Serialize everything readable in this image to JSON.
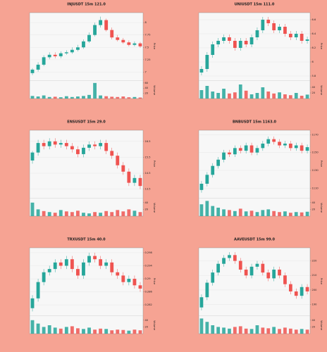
{
  "chart_data": [
    {
      "type": "candlestick",
      "title": "INJUSDT 15m 121.0",
      "ylabel": "Price",
      "y2label": "Volume",
      "up_color": "#26a69a",
      "down_color": "#ef5350",
      "grid": true,
      "open": [
        6.98,
        7.05,
        7.15,
        7.3,
        7.35,
        7.32,
        7.38,
        7.4,
        7.45,
        7.5,
        7.62,
        7.75,
        7.95,
        8.05,
        7.85,
        7.7,
        7.65,
        7.6,
        7.55,
        7.58
      ],
      "high": [
        7.08,
        7.2,
        7.34,
        7.4,
        7.4,
        7.42,
        7.44,
        7.5,
        7.55,
        7.66,
        7.8,
        8.0,
        8.12,
        8.08,
        7.9,
        7.75,
        7.69,
        7.64,
        7.62,
        7.61
      ],
      "low": [
        6.94,
        7.01,
        7.12,
        7.26,
        7.28,
        7.28,
        7.35,
        7.37,
        7.42,
        7.47,
        7.59,
        7.72,
        7.9,
        7.82,
        7.66,
        7.62,
        7.57,
        7.52,
        7.52,
        7.49
      ],
      "close": [
        7.05,
        7.15,
        7.3,
        7.35,
        7.32,
        7.38,
        7.4,
        7.45,
        7.5,
        7.62,
        7.75,
        7.95,
        8.05,
        7.85,
        7.7,
        7.65,
        7.6,
        7.55,
        7.58,
        7.52
      ],
      "volume": [
        10,
        8,
        12,
        6,
        7,
        5,
        9,
        6,
        8,
        10,
        14,
        60,
        12,
        9,
        7,
        6,
        8,
        5,
        6,
        4
      ],
      "ylim": [
        6.85,
        8.2
      ],
      "yticks": [
        7.0,
        7.25,
        7.5,
        7.75,
        8.0
      ],
      "y2lim": [
        0,
        65
      ],
      "y2ticks": [
        20,
        40,
        60
      ]
    },
    {
      "type": "candlestick",
      "title": "UNIUSDT 15m 111.0",
      "ylabel": "Price",
      "y2label": "Volume",
      "up_color": "#26a69a",
      "down_color": "#ef5350",
      "grid": true,
      "open": [
        5.85,
        5.9,
        6.1,
        6.25,
        6.3,
        6.35,
        6.3,
        6.2,
        6.3,
        6.25,
        6.35,
        6.45,
        6.6,
        6.55,
        6.45,
        6.5,
        6.4,
        6.35,
        6.4,
        6.3
      ],
      "high": [
        5.94,
        6.14,
        6.29,
        6.34,
        6.39,
        6.39,
        6.34,
        6.34,
        6.34,
        6.39,
        6.49,
        6.64,
        6.64,
        6.59,
        6.54,
        6.54,
        6.44,
        6.44,
        6.44,
        6.36
      ],
      "low": [
        5.81,
        5.86,
        6.06,
        6.21,
        6.26,
        6.26,
        6.16,
        6.16,
        6.21,
        6.21,
        6.31,
        6.41,
        6.51,
        6.41,
        6.41,
        6.36,
        6.31,
        6.31,
        6.26,
        6.26
      ],
      "close": [
        5.9,
        6.1,
        6.25,
        6.3,
        6.35,
        6.3,
        6.2,
        6.3,
        6.25,
        6.35,
        6.45,
        6.6,
        6.55,
        6.45,
        6.5,
        6.4,
        6.35,
        6.4,
        6.3,
        6.32
      ],
      "volume": [
        30,
        45,
        25,
        20,
        35,
        18,
        22,
        50,
        28,
        15,
        20,
        40,
        25,
        18,
        22,
        15,
        12,
        20,
        10,
        14
      ],
      "ylim": [
        5.75,
        6.7
      ],
      "yticks": [
        5.8,
        6.0,
        6.2,
        6.4,
        6.6
      ],
      "y2lim": [
        0,
        60
      ],
      "y2ticks": [
        20,
        40
      ]
    },
    {
      "type": "candlestick",
      "title": "ENSUSDT 15m 29.0",
      "ylabel": "Price",
      "y2label": "Volume",
      "up_color": "#26a69a",
      "down_color": "#ef5350",
      "grid": true,
      "open": [
        15.3,
        15.8,
        16.4,
        16.2,
        16.5,
        16.3,
        16.4,
        16.2,
        16.0,
        15.7,
        16.1,
        16.3,
        16.2,
        16.4,
        15.9,
        15.6,
        15.0,
        14.6,
        13.9,
        14.2
      ],
      "high": [
        15.9,
        16.6,
        16.6,
        16.7,
        16.7,
        16.6,
        16.6,
        16.4,
        16.2,
        16.3,
        16.5,
        16.5,
        16.6,
        16.6,
        16.1,
        15.8,
        15.2,
        14.8,
        14.4,
        14.4
      ],
      "low": [
        15.1,
        15.6,
        16.0,
        16.0,
        16.1,
        16.1,
        16.0,
        15.8,
        15.5,
        15.5,
        15.9,
        16.0,
        16.0,
        15.7,
        15.4,
        14.8,
        14.4,
        13.7,
        13.7,
        13.5
      ],
      "close": [
        15.8,
        16.4,
        16.2,
        16.5,
        16.3,
        16.4,
        16.2,
        16.0,
        15.7,
        16.1,
        16.3,
        16.2,
        16.4,
        15.9,
        15.6,
        15.0,
        14.6,
        13.9,
        14.2,
        13.7
      ],
      "volume": [
        40,
        20,
        15,
        12,
        10,
        18,
        14,
        12,
        16,
        10,
        8,
        12,
        10,
        15,
        12,
        18,
        14,
        20,
        16,
        12
      ],
      "ylim": [
        13.0,
        17.2
      ],
      "yticks": [
        13.5,
        14.5,
        15.5,
        16.5
      ],
      "y2lim": [
        0,
        50
      ],
      "y2ticks": [
        20,
        40
      ]
    },
    {
      "type": "candlestick",
      "title": "BNBUSDT 15m 1163.0",
      "ylabel": "Price",
      "y2label": "Volume",
      "up_color": "#26a69a",
      "down_color": "#ef5350",
      "grid": true,
      "open": [
        1108,
        1115,
        1125,
        1135,
        1142,
        1150,
        1148,
        1155,
        1152,
        1158,
        1150,
        1155,
        1160,
        1165,
        1162,
        1158,
        1160,
        1155,
        1158,
        1152
      ],
      "high": [
        1118,
        1128,
        1138,
        1145,
        1153,
        1153,
        1158,
        1158,
        1161,
        1161,
        1158,
        1163,
        1168,
        1168,
        1165,
        1163,
        1163,
        1161,
        1161,
        1159
      ],
      "low": [
        1105,
        1112,
        1122,
        1132,
        1139,
        1145,
        1145,
        1149,
        1149,
        1147,
        1147,
        1152,
        1157,
        1159,
        1155,
        1155,
        1152,
        1152,
        1149,
        1149
      ],
      "close": [
        1115,
        1125,
        1135,
        1142,
        1150,
        1148,
        1155,
        1152,
        1158,
        1150,
        1155,
        1160,
        1165,
        1162,
        1158,
        1160,
        1155,
        1158,
        1152,
        1156
      ],
      "volume": [
        35,
        45,
        30,
        25,
        20,
        18,
        15,
        22,
        14,
        16,
        12,
        18,
        20,
        15,
        12,
        14,
        10,
        12,
        11,
        13
      ],
      "ylim": [
        1100,
        1175
      ],
      "yticks": [
        1110,
        1130,
        1150,
        1170
      ],
      "y2lim": [
        0,
        50
      ],
      "y2ticks": [
        20,
        40
      ]
    },
    {
      "type": "candlestick",
      "title": "TRXUSDT 15m 40.0",
      "ylabel": "Price",
      "y2label": "Volume",
      "up_color": "#26a69a",
      "down_color": "#ef5350",
      "grid": true,
      "open": [
        0.281,
        0.284,
        0.289,
        0.292,
        0.293,
        0.295,
        0.294,
        0.296,
        0.293,
        0.291,
        0.295,
        0.297,
        0.296,
        0.294,
        0.295,
        0.292,
        0.291,
        0.289,
        0.29,
        0.288
      ],
      "high": [
        0.285,
        0.29,
        0.293,
        0.294,
        0.296,
        0.296,
        0.297,
        0.297,
        0.294,
        0.296,
        0.298,
        0.298,
        0.297,
        0.296,
        0.296,
        0.293,
        0.292,
        0.291,
        0.291,
        0.289
      ],
      "low": [
        0.28,
        0.283,
        0.288,
        0.291,
        0.292,
        0.293,
        0.293,
        0.292,
        0.29,
        0.29,
        0.294,
        0.295,
        0.293,
        0.293,
        0.291,
        0.29,
        0.288,
        0.288,
        0.287,
        0.286
      ],
      "close": [
        0.284,
        0.289,
        0.292,
        0.293,
        0.295,
        0.294,
        0.296,
        0.293,
        0.291,
        0.295,
        0.297,
        0.296,
        0.294,
        0.295,
        0.292,
        0.291,
        0.289,
        0.29,
        0.288,
        0.287
      ],
      "volume": [
        40,
        30,
        20,
        25,
        18,
        15,
        20,
        22,
        16,
        14,
        18,
        12,
        15,
        14,
        10,
        12,
        11,
        9,
        12,
        10
      ],
      "ylim": [
        0.279,
        0.2995
      ],
      "yticks": [
        0.282,
        0.286,
        0.29,
        0.294,
        0.298
      ],
      "y2lim": [
        0,
        50
      ],
      "y2ticks": [
        20,
        40
      ]
    },
    {
      "type": "candlestick",
      "title": "AAVEUSDT 15m 99.0",
      "ylabel": "Price",
      "y2label": "Volume",
      "up_color": "#26a69a",
      "down_color": "#ef5350",
      "grid": true,
      "open": [
        188,
        195,
        205,
        212,
        218,
        222,
        224,
        220,
        214,
        210,
        216,
        218,
        212,
        208,
        214,
        210,
        204,
        199,
        196,
        202
      ],
      "high": [
        197,
        207,
        214,
        220,
        224,
        226,
        226,
        222,
        216,
        218,
        220,
        220,
        214,
        216,
        216,
        212,
        206,
        201,
        204,
        204
      ],
      "low": [
        186,
        193,
        203,
        210,
        216,
        220,
        218,
        212,
        208,
        208,
        214,
        210,
        206,
        206,
        208,
        202,
        197,
        194,
        194,
        197
      ],
      "close": [
        195,
        205,
        212,
        218,
        222,
        224,
        220,
        214,
        210,
        216,
        218,
        212,
        208,
        214,
        210,
        204,
        199,
        196,
        202,
        199
      ],
      "volume": [
        45,
        35,
        25,
        20,
        18,
        15,
        20,
        22,
        15,
        14,
        25,
        18,
        16,
        20,
        14,
        18,
        15,
        12,
        14,
        12
      ],
      "ylim": [
        183,
        229
      ],
      "yticks": [
        190,
        200,
        210,
        220
      ],
      "y2lim": [
        0,
        50
      ],
      "y2ticks": [
        20,
        40
      ]
    }
  ]
}
